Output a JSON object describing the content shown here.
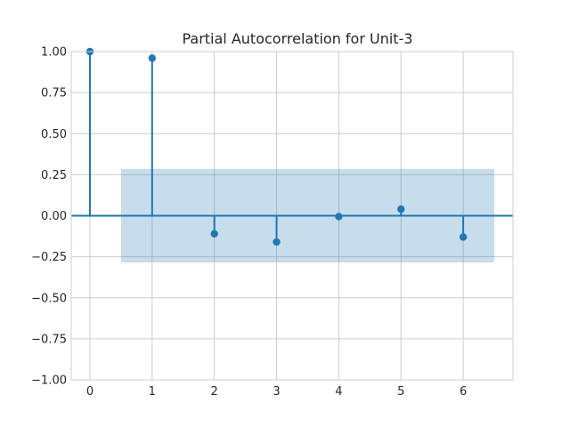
{
  "chart_data": {
    "type": "stem",
    "title": "Partial Autocorrelation for Unit-3",
    "xlabel": "",
    "ylabel": "",
    "x": [
      0,
      1,
      2,
      3,
      4,
      5,
      6
    ],
    "values": [
      1.0,
      0.96,
      -0.11,
      -0.16,
      -0.005,
      0.04,
      -0.13
    ],
    "confidence_band": {
      "lower": -0.285,
      "upper": 0.285,
      "x_range": [
        0.5,
        6.5
      ]
    },
    "xlim": [
      -0.3,
      6.8
    ],
    "ylim": [
      -1.0,
      1.0
    ],
    "xticks": [
      0,
      1,
      2,
      3,
      4,
      5,
      6
    ],
    "yticks": [
      -1.0,
      -0.75,
      -0.5,
      -0.25,
      0.0,
      0.25,
      0.5,
      0.75,
      1.0
    ],
    "ytick_labels": [
      "−1.00",
      "−0.75",
      "−0.50",
      "−0.25",
      "0.00",
      "0.25",
      "0.50",
      "0.75",
      "1.00"
    ],
    "xtick_labels": [
      "0",
      "1",
      "2",
      "3",
      "4",
      "5",
      "6"
    ],
    "grid": true,
    "colors": {
      "stem": "#1f77b4",
      "band": "#1f77b4",
      "grid": "#cccccc",
      "frame": "#cccccc"
    }
  }
}
